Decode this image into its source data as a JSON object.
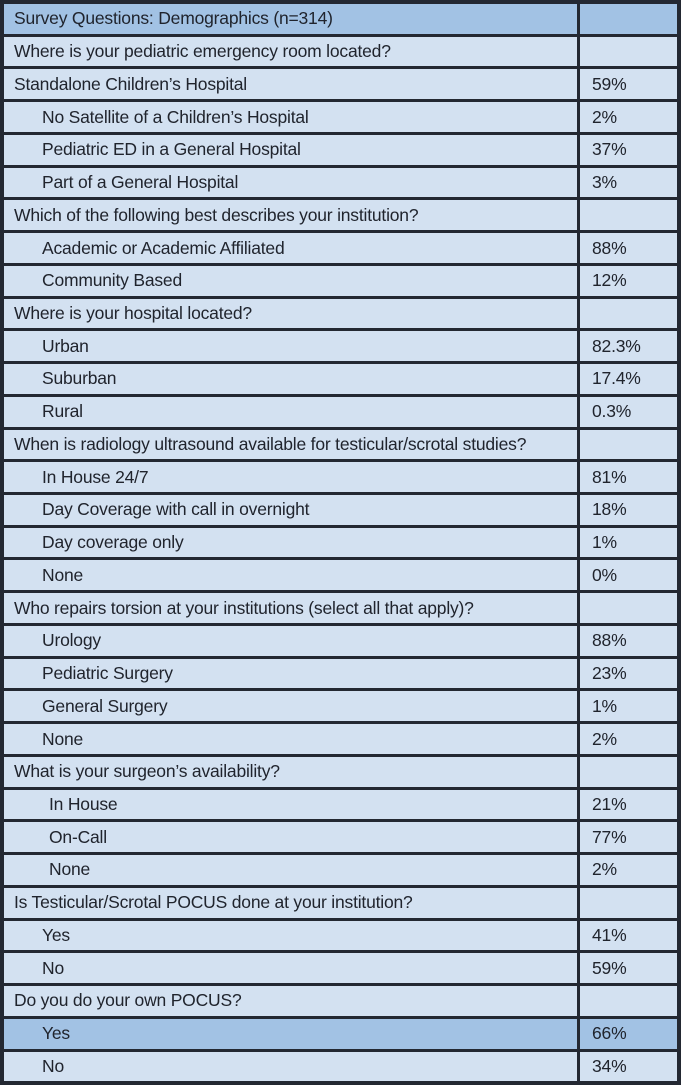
{
  "table": {
    "title": "Survey Questions: Demographics (n=314)",
    "colors": {
      "header_bg": "#A2C2E4",
      "row_bg": "#D3E1F1",
      "highlight_bg": "#A2C2E4",
      "border": "#232832",
      "text": "#20242D"
    },
    "rows": [
      {
        "kind": "header",
        "indent": 0,
        "highlight": true,
        "label": "Survey Questions: Demographics (n=314)",
        "value": ""
      },
      {
        "kind": "question",
        "indent": 0,
        "highlight": false,
        "label": "Where is your pediatric emergency room located?",
        "value": ""
      },
      {
        "kind": "answer",
        "indent": 0,
        "highlight": false,
        "label": "Standalone Children’s Hospital",
        "value": "59%"
      },
      {
        "kind": "answer",
        "indent": 1,
        "highlight": false,
        "label": "No Satellite of a Children’s Hospital",
        "value": "2%"
      },
      {
        "kind": "answer",
        "indent": 1,
        "highlight": false,
        "label": "Pediatric ED in a General Hospital",
        "value": "37%"
      },
      {
        "kind": "answer",
        "indent": 1,
        "highlight": false,
        "label": "Part of a General Hospital",
        "value": "3%"
      },
      {
        "kind": "question",
        "indent": 0,
        "highlight": false,
        "label": "Which of the following best describes your institution?",
        "value": ""
      },
      {
        "kind": "answer",
        "indent": 1,
        "highlight": false,
        "label": "Academic or Academic Affiliated",
        "value": "88%"
      },
      {
        "kind": "answer",
        "indent": 1,
        "highlight": false,
        "label": "Community Based",
        "value": "12%"
      },
      {
        "kind": "question",
        "indent": 0,
        "highlight": false,
        "label": "Where is your hospital located?",
        "value": ""
      },
      {
        "kind": "answer",
        "indent": 1,
        "highlight": false,
        "label": "Urban",
        "value": "82.3%"
      },
      {
        "kind": "answer",
        "indent": 1,
        "highlight": false,
        "label": "Suburban",
        "value": "17.4%"
      },
      {
        "kind": "answer",
        "indent": 1,
        "highlight": false,
        "label": "Rural",
        "value": "0.3%"
      },
      {
        "kind": "question",
        "indent": 0,
        "highlight": false,
        "label": "When is radiology ultrasound available for testicular/scrotal studies?",
        "value": ""
      },
      {
        "kind": "answer",
        "indent": 1,
        "highlight": false,
        "label": "In House 24/7",
        "value": "81%"
      },
      {
        "kind": "answer",
        "indent": 1,
        "highlight": false,
        "label": "Day Coverage with call in overnight",
        "value": "18%"
      },
      {
        "kind": "answer",
        "indent": 1,
        "highlight": false,
        "label": "Day coverage only",
        "value": "1%"
      },
      {
        "kind": "answer",
        "indent": 1,
        "highlight": false,
        "label": "None",
        "value": "0%"
      },
      {
        "kind": "question",
        "indent": 0,
        "highlight": false,
        "label": "Who repairs torsion at your institutions (select all that apply)?",
        "value": ""
      },
      {
        "kind": "answer",
        "indent": 1,
        "highlight": false,
        "label": "Urology",
        "value": "88%"
      },
      {
        "kind": "answer",
        "indent": 1,
        "highlight": false,
        "label": "Pediatric Surgery",
        "value": "23%"
      },
      {
        "kind": "answer",
        "indent": 1,
        "highlight": false,
        "label": "General Surgery",
        "value": "1%"
      },
      {
        "kind": "answer",
        "indent": 1,
        "highlight": false,
        "label": "None",
        "value": "2%"
      },
      {
        "kind": "question",
        "indent": 0,
        "highlight": false,
        "label": "What is your surgeon’s availability?",
        "value": ""
      },
      {
        "kind": "answer",
        "indent": 2,
        "highlight": false,
        "label": "In House",
        "value": "21%"
      },
      {
        "kind": "answer",
        "indent": 2,
        "highlight": false,
        "label": "On-Call",
        "value": "77%"
      },
      {
        "kind": "answer",
        "indent": 2,
        "highlight": false,
        "label": "None",
        "value": "2%"
      },
      {
        "kind": "question",
        "indent": 0,
        "highlight": false,
        "label": "Is Testicular/Scrotal POCUS done at your institution?",
        "value": ""
      },
      {
        "kind": "answer",
        "indent": 1,
        "highlight": false,
        "label": "Yes",
        "value": "41%"
      },
      {
        "kind": "answer",
        "indent": 1,
        "highlight": false,
        "label": "No",
        "value": "59%"
      },
      {
        "kind": "question",
        "indent": 0,
        "highlight": false,
        "label": "Do you do your own POCUS?",
        "value": ""
      },
      {
        "kind": "answer",
        "indent": 1,
        "highlight": true,
        "label": "Yes",
        "value": "66%"
      },
      {
        "kind": "answer",
        "indent": 1,
        "highlight": false,
        "label": "No",
        "value": "34%"
      }
    ]
  }
}
